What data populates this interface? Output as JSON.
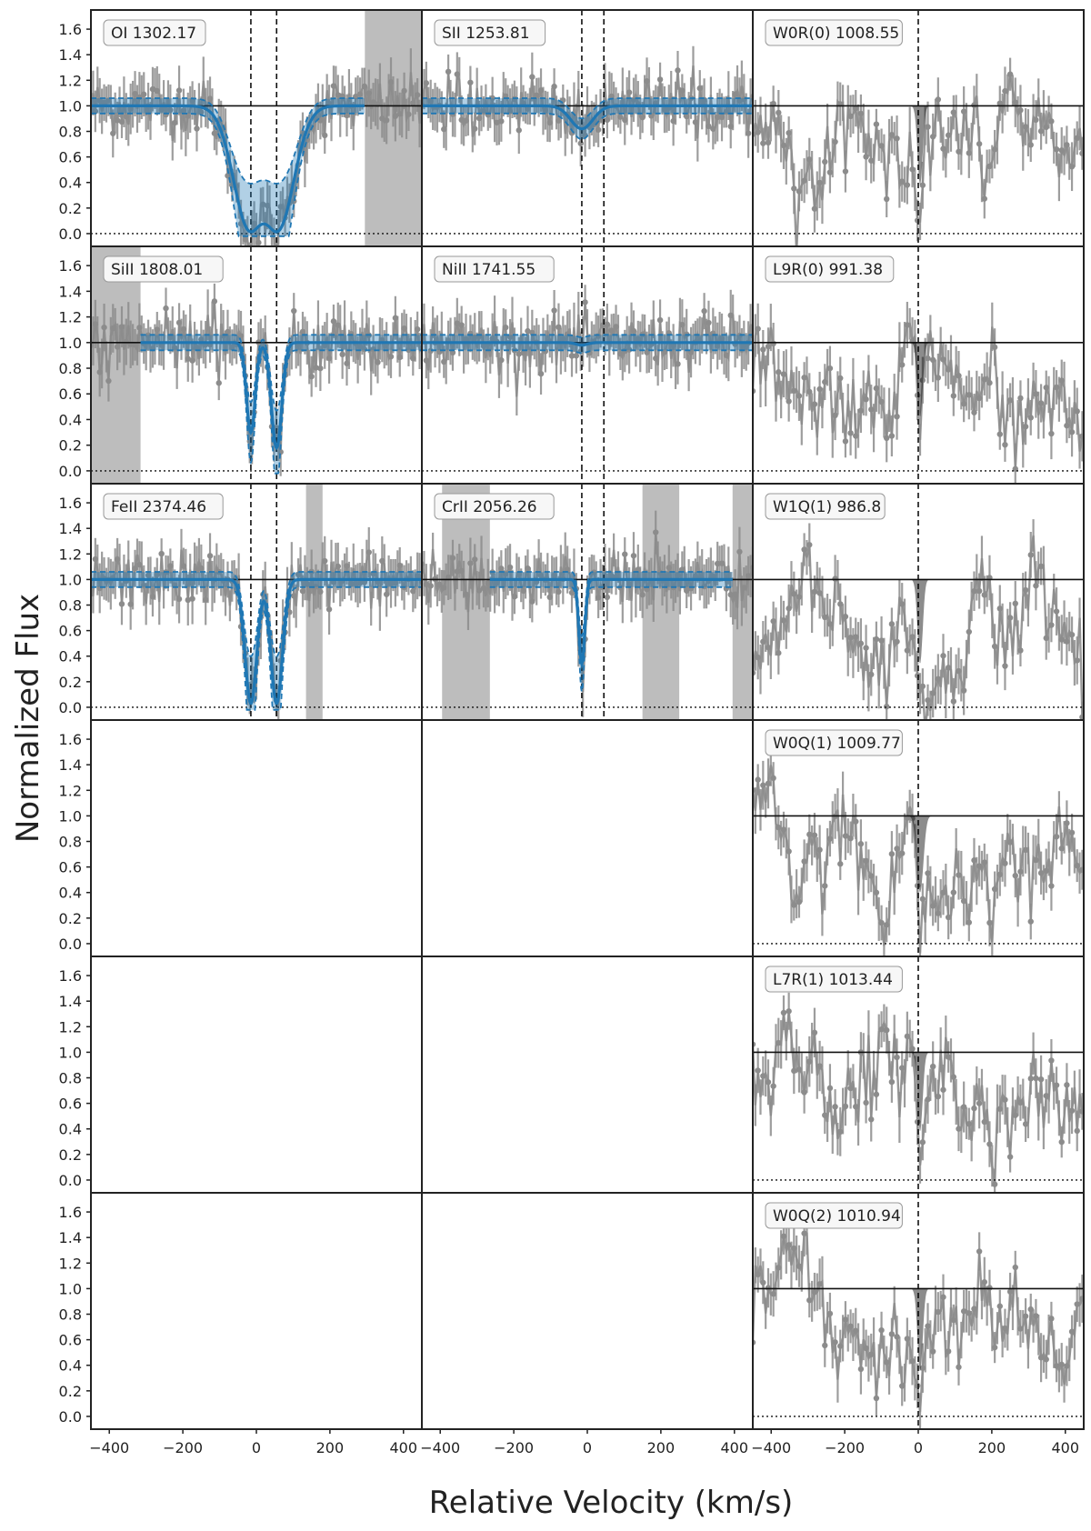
{
  "chart_data": {
    "type": "line",
    "title": "",
    "xlabel": "Relative Velocity (km/s)",
    "ylabel": "Normalized Flux",
    "xlim": [
      -450,
      450
    ],
    "ylim": [
      -0.1,
      1.75
    ],
    "x_ticks": [
      -400,
      -200,
      0,
      200,
      400
    ],
    "y_ticks": [
      0.0,
      0.2,
      0.4,
      0.6,
      0.8,
      1.0,
      1.2,
      1.4,
      1.6
    ],
    "x_tick_labels": [
      "-400",
      "-200",
      "0",
      "200",
      "400"
    ],
    "y_tick_labels": [
      "0.0",
      "0.2",
      "0.4",
      "0.6",
      "0.8",
      "1.0",
      "1.2",
      "1.4",
      "1.6"
    ],
    "grid": false,
    "colors": {
      "data": "#8c8c8c",
      "metal_model": "#1f77b4",
      "h2_model": "#2ca02c",
      "mask": "#bdbdbd"
    },
    "panels": [
      {
        "row": 0,
        "col": 0,
        "label": "OI 1302.17",
        "kind": "metal",
        "markers": [
          -15,
          55
        ],
        "masks": [
          [
            295,
            450
          ]
        ],
        "components": [
          {
            "v": -15,
            "depth": 0.98,
            "width": 45
          },
          {
            "v": 55,
            "depth": 0.98,
            "width": 45
          }
        ],
        "model_range": [
          -450,
          295
        ]
      },
      {
        "row": 0,
        "col": 1,
        "label": "SII 1253.81",
        "kind": "metal",
        "markers": [
          -15,
          45
        ],
        "masks": [],
        "components": [
          {
            "v": -15,
            "depth": 0.18,
            "width": 30
          }
        ],
        "model_range": [
          -450,
          450
        ]
      },
      {
        "row": 0,
        "col": 2,
        "label": "W0R(0) 1008.55",
        "kind": "h2",
        "markers": [
          0
        ],
        "masks": [],
        "components": [
          {
            "v": 5,
            "depth": 0.62,
            "width": 7
          }
        ],
        "model_range": [
          -450,
          450
        ]
      },
      {
        "row": 1,
        "col": 0,
        "label": "SiII 1808.01",
        "kind": "metal",
        "markers": [
          -15,
          55
        ],
        "masks": [
          [
            -450,
            -315
          ]
        ],
        "components": [
          {
            "v": -15,
            "depth": 0.7,
            "width": 12
          },
          {
            "v": 55,
            "depth": 0.82,
            "width": 14
          }
        ],
        "model_range": [
          -315,
          450
        ]
      },
      {
        "row": 1,
        "col": 1,
        "label": "NiII 1741.55",
        "kind": "metal",
        "markers": [
          -15,
          45
        ],
        "masks": [],
        "components": [
          {
            "v": -15,
            "depth": 0.02,
            "width": 15
          }
        ],
        "model_range": [
          -450,
          450
        ]
      },
      {
        "row": 1,
        "col": 2,
        "label": "L9R(0) 991.38",
        "kind": "h2",
        "markers": [
          0
        ],
        "masks": [],
        "components": [
          {
            "v": 5,
            "depth": 0.58,
            "width": 7
          }
        ],
        "model_range": [
          -450,
          450
        ]
      },
      {
        "row": 2,
        "col": 0,
        "label": "FeII 2374.46",
        "kind": "metal",
        "markers": [
          -15,
          55
        ],
        "masks": [
          [
            135,
            180
          ]
        ],
        "components": [
          {
            "v": -15,
            "depth": 0.97,
            "width": 16
          },
          {
            "v": 55,
            "depth": 0.97,
            "width": 16
          }
        ],
        "model_range": [
          -450,
          450
        ]
      },
      {
        "row": 2,
        "col": 1,
        "label": "CrII 2056.26",
        "kind": "metal",
        "markers": [
          -15,
          45
        ],
        "masks": [
          [
            -395,
            -265
          ],
          [
            150,
            250
          ],
          [
            395,
            450
          ]
        ],
        "components": [
          {
            "v": -15,
            "depth": 0.66,
            "width": 8
          }
        ],
        "model_range": [
          -265,
          395
        ]
      },
      {
        "row": 2,
        "col": 2,
        "label": "W1Q(1) 986.8",
        "kind": "h2",
        "markers": [
          0
        ],
        "masks": [],
        "components": [
          {
            "v": 5,
            "depth": 0.66,
            "width": 7
          }
        ],
        "model_range": [
          -450,
          450
        ]
      },
      {
        "row": 3,
        "col": 2,
        "label": "W0Q(1) 1009.77",
        "kind": "h2",
        "markers": [
          0
        ],
        "masks": [],
        "components": [
          {
            "v": 5,
            "depth": 0.6,
            "width": 9
          }
        ],
        "model_range": [
          -450,
          450
        ]
      },
      {
        "row": 4,
        "col": 2,
        "label": "L7R(1) 1013.44",
        "kind": "h2",
        "markers": [
          0
        ],
        "masks": [],
        "components": [
          {
            "v": 5,
            "depth": 0.62,
            "width": 7
          }
        ],
        "model_range": [
          -450,
          450
        ]
      },
      {
        "row": 5,
        "col": 2,
        "label": "W0Q(2) 1010.94",
        "kind": "h2",
        "markers": [
          0
        ],
        "masks": [],
        "components": [
          {
            "v": 5,
            "depth": 0.65,
            "width": 7
          }
        ],
        "model_range": [
          -450,
          450
        ]
      }
    ]
  }
}
